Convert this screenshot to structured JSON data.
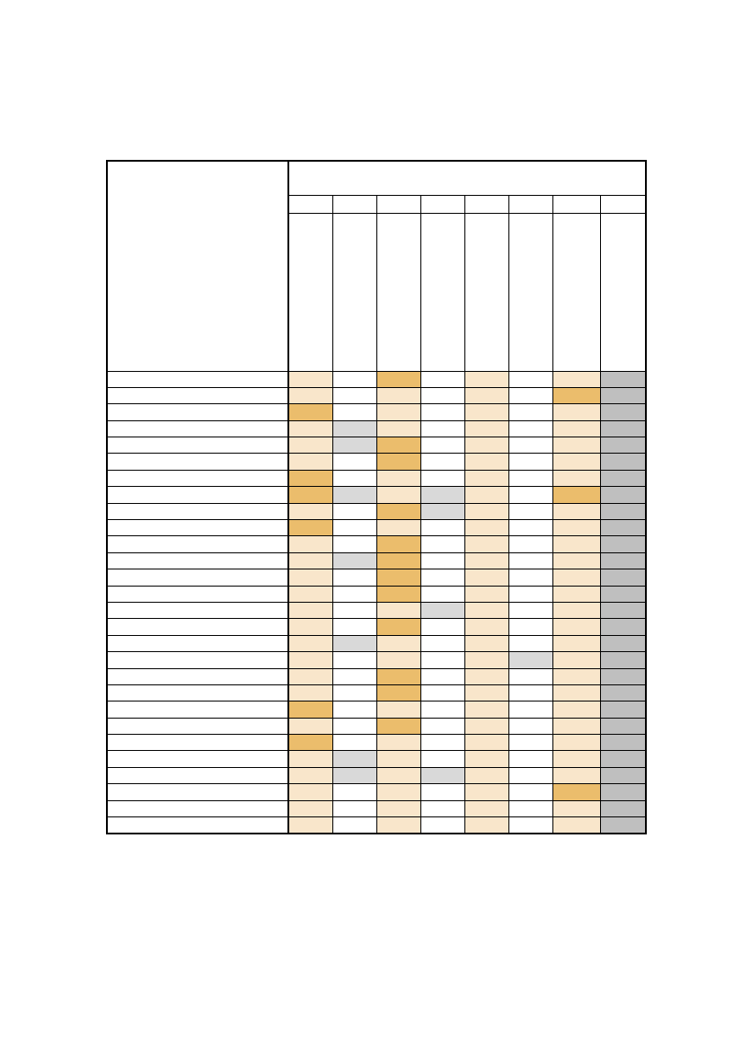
{
  "colors": {
    "light": "#f9e6cb",
    "dark": "#ebbd6c",
    "grey": "#d9d9d9",
    "mid": "#bfbfbf",
    "white": "#ffffff"
  },
  "header": {
    "group_title": "",
    "row_label_header": "",
    "column_numbers": [
      "",
      "",
      "",
      "",
      "",
      "",
      "",
      ""
    ],
    "column_titles": [
      "",
      "",
      "",
      "",
      "",
      "",
      "",
      ""
    ]
  },
  "rows": [
    {
      "label": "",
      "cells": [
        "light",
        "white",
        "dark",
        "white",
        "light",
        "white",
        "light",
        "mid"
      ]
    },
    {
      "label": "",
      "cells": [
        "light",
        "white",
        "light",
        "white",
        "light",
        "white",
        "dark",
        "mid"
      ]
    },
    {
      "label": "",
      "cells": [
        "dark",
        "white",
        "light",
        "white",
        "light",
        "white",
        "light",
        "mid"
      ]
    },
    {
      "label": "",
      "cells": [
        "light",
        "grey",
        "light",
        "white",
        "light",
        "white",
        "light",
        "mid"
      ]
    },
    {
      "label": "",
      "cells": [
        "light",
        "grey",
        "dark",
        "white",
        "light",
        "white",
        "light",
        "mid"
      ]
    },
    {
      "label": "",
      "cells": [
        "light",
        "white",
        "dark",
        "white",
        "light",
        "white",
        "light",
        "mid"
      ]
    },
    {
      "label": "",
      "cells": [
        "dark",
        "white",
        "light",
        "white",
        "light",
        "white",
        "light",
        "mid"
      ]
    },
    {
      "label": "",
      "cells": [
        "dark",
        "grey",
        "light",
        "grey",
        "light",
        "white",
        "dark",
        "mid"
      ]
    },
    {
      "label": "",
      "cells": [
        "light",
        "white",
        "dark",
        "grey",
        "light",
        "white",
        "light",
        "mid"
      ]
    },
    {
      "label": "",
      "cells": [
        "dark",
        "white",
        "light",
        "white",
        "light",
        "white",
        "light",
        "mid"
      ]
    },
    {
      "label": "",
      "cells": [
        "light",
        "white",
        "dark",
        "white",
        "light",
        "white",
        "light",
        "mid"
      ]
    },
    {
      "label": "",
      "cells": [
        "light",
        "grey",
        "dark",
        "white",
        "light",
        "white",
        "light",
        "mid"
      ]
    },
    {
      "label": "",
      "cells": [
        "light",
        "white",
        "dark",
        "white",
        "light",
        "white",
        "light",
        "mid"
      ]
    },
    {
      "label": "",
      "cells": [
        "light",
        "white",
        "dark",
        "white",
        "light",
        "white",
        "light",
        "mid"
      ]
    },
    {
      "label": "",
      "cells": [
        "light",
        "white",
        "light",
        "grey",
        "light",
        "white",
        "light",
        "mid"
      ]
    },
    {
      "label": "",
      "cells": [
        "light",
        "white",
        "dark",
        "white",
        "light",
        "white",
        "light",
        "mid"
      ]
    },
    {
      "label": "",
      "cells": [
        "light",
        "grey",
        "light",
        "white",
        "light",
        "white",
        "light",
        "mid"
      ]
    },
    {
      "label": "",
      "cells": [
        "light",
        "white",
        "light",
        "white",
        "light",
        "grey",
        "light",
        "mid"
      ]
    },
    {
      "label": "",
      "cells": [
        "light",
        "white",
        "dark",
        "white",
        "light",
        "white",
        "light",
        "mid"
      ]
    },
    {
      "label": "",
      "cells": [
        "light",
        "white",
        "dark",
        "white",
        "light",
        "white",
        "light",
        "mid"
      ]
    },
    {
      "label": "",
      "cells": [
        "dark",
        "white",
        "light",
        "white",
        "light",
        "white",
        "light",
        "mid"
      ]
    },
    {
      "label": "",
      "cells": [
        "light",
        "white",
        "dark",
        "white",
        "light",
        "white",
        "light",
        "mid"
      ]
    },
    {
      "label": "",
      "cells": [
        "dark",
        "white",
        "light",
        "white",
        "light",
        "white",
        "light",
        "mid"
      ]
    },
    {
      "label": "",
      "cells": [
        "light",
        "grey",
        "light",
        "white",
        "light",
        "white",
        "light",
        "mid"
      ]
    },
    {
      "label": "",
      "cells": [
        "light",
        "grey",
        "light",
        "grey",
        "light",
        "white",
        "light",
        "mid"
      ]
    },
    {
      "label": "",
      "cells": [
        "light",
        "white",
        "light",
        "white",
        "light",
        "white",
        "dark",
        "mid"
      ]
    },
    {
      "label": "",
      "cells": [
        "light",
        "white",
        "light",
        "white",
        "light",
        "white",
        "light",
        "mid"
      ]
    },
    {
      "label": "",
      "cells": [
        "light",
        "white",
        "light",
        "white",
        "light",
        "white",
        "light",
        "mid"
      ]
    }
  ]
}
